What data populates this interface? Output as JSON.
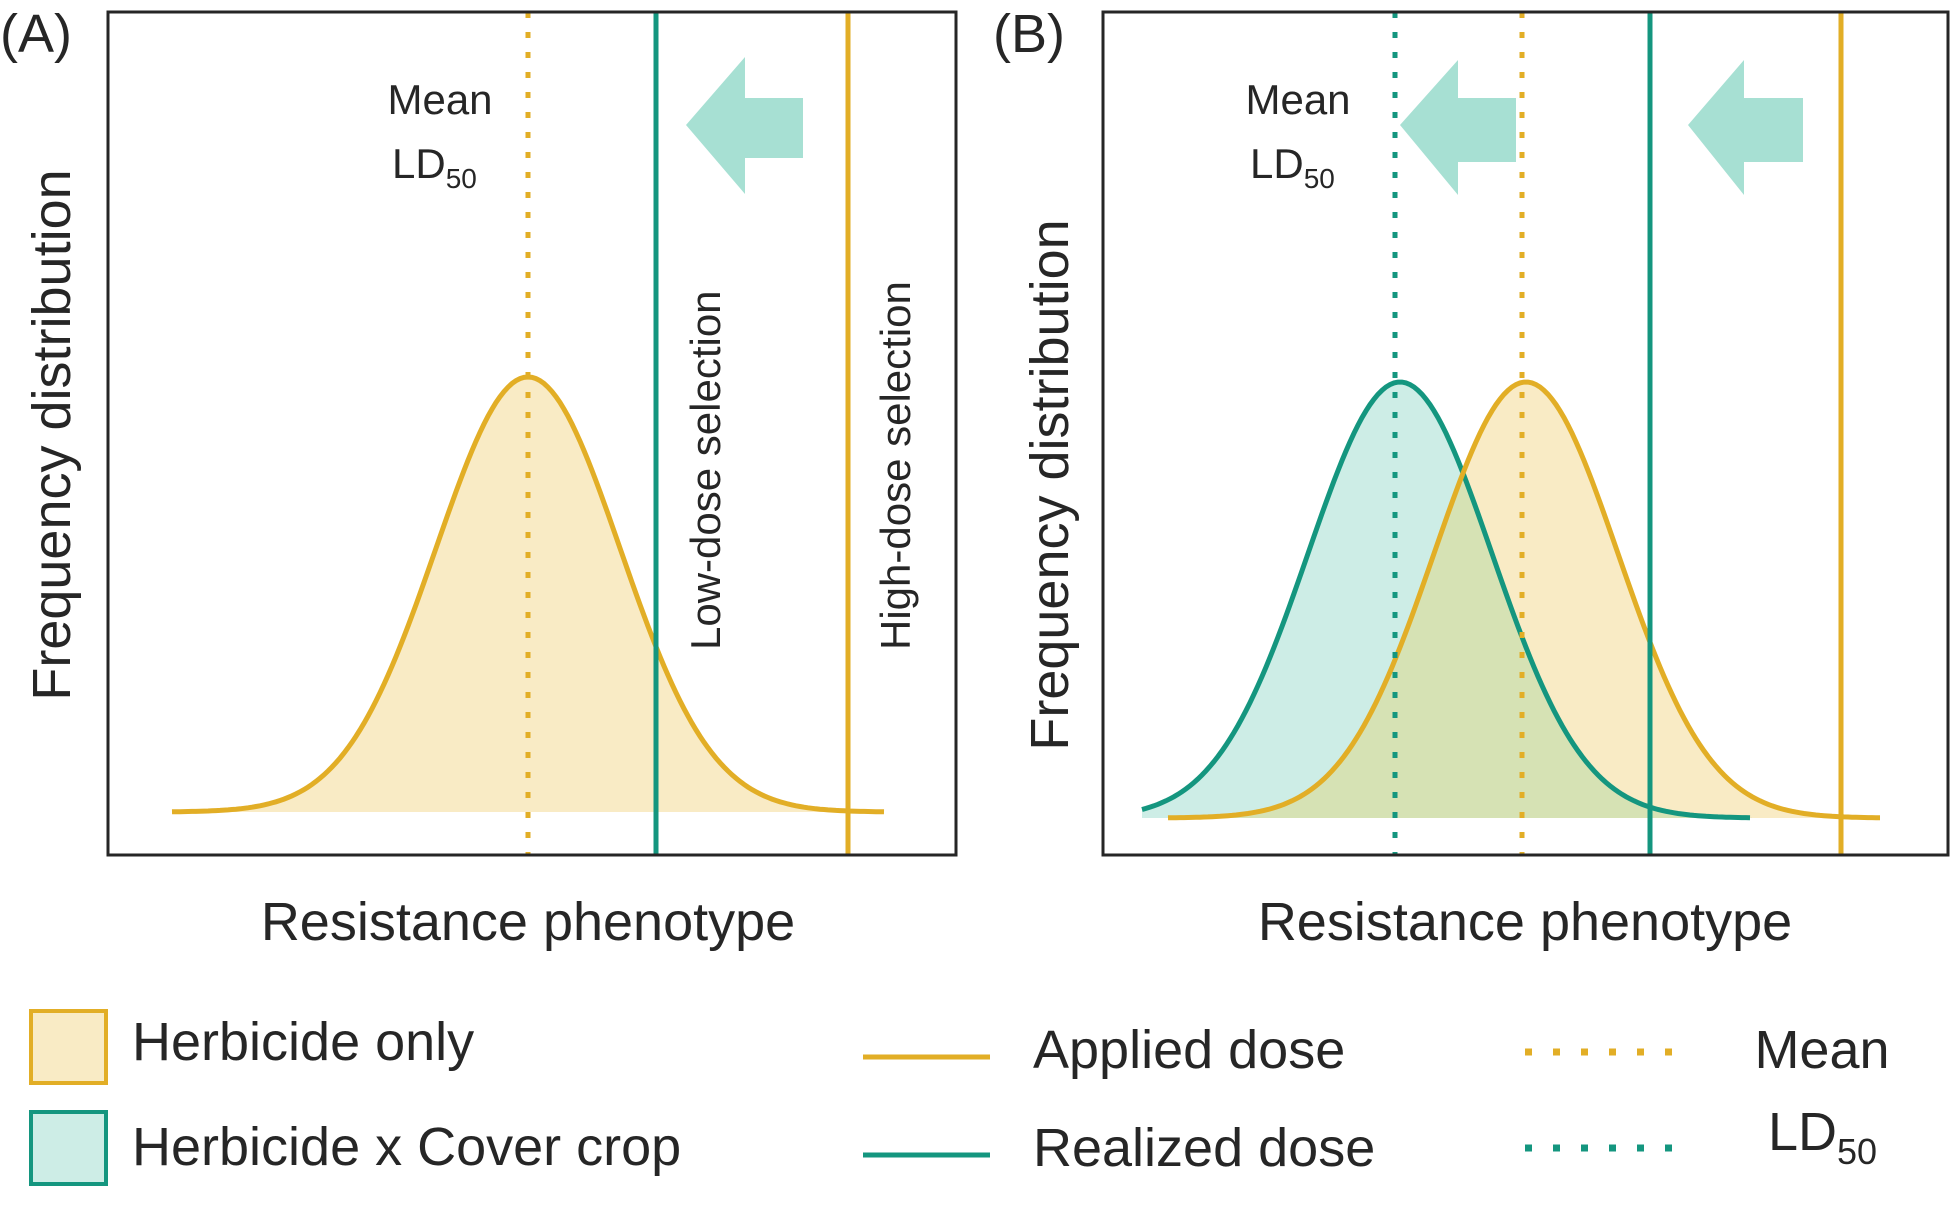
{
  "colors": {
    "gold": "#E2AE26",
    "gold_fill": "#F9EBC5",
    "teal": "#14967F",
    "teal_fill": "#CDEDE6",
    "arrow": "#A7E0D3",
    "overlap_fill": "#D6E2B4",
    "frame": "#262626"
  },
  "panelA": {
    "tag": "(A)",
    "ylabel": "Frequency distribution",
    "xlabel": "Resistance phenotype",
    "mean_label_line1": "Mean",
    "mean_label_ld": "LD",
    "mean_label_sub": "50",
    "low_dose_label": "Low-dose selection",
    "high_dose_label": "High-dose selection"
  },
  "panelB": {
    "tag": "(B)",
    "ylabel": "Frequency distribution",
    "xlabel": "Resistance phenotype",
    "mean_label_line1": "Mean",
    "mean_label_ld": "LD",
    "mean_label_sub": "50"
  },
  "legend": {
    "herbicide_only": "Herbicide only",
    "herbicide_cover": "Herbicide x Cover crop",
    "applied_dose": "Applied dose",
    "realized_dose": "Realized dose",
    "mean_line1": "Mean",
    "mean_ld": "LD",
    "mean_sub": "50"
  }
}
